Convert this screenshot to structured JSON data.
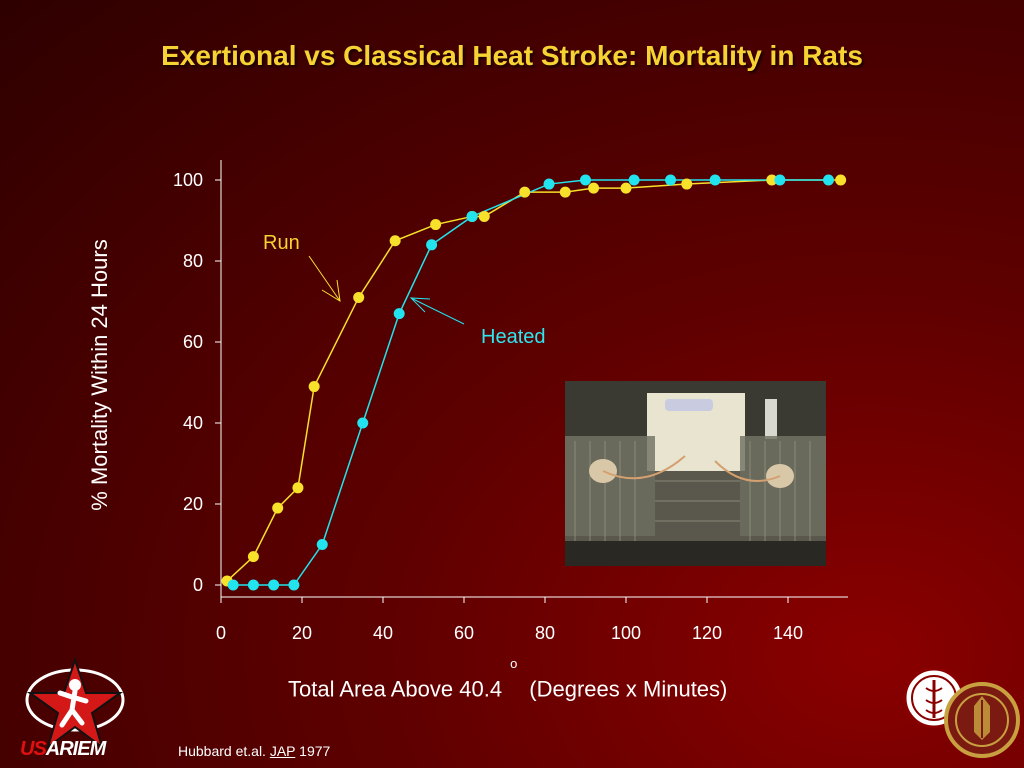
{
  "slide": {
    "title": "Exertional vs Classical Heat Stroke: Mortality in Rats",
    "citation_authors": "Hubbard et.al. ",
    "citation_journal": "JAP",
    "citation_year": " 1977",
    "logo_left_text_us": "US",
    "logo_left_text_rest": "ARIEM"
  },
  "chart_data": {
    "type": "line",
    "title": "Exertional vs Classical Heat Stroke: Mortality in Rats",
    "xlabel_main": "Total Area Above 40.4",
    "xlabel_degree": "o",
    "xlabel_units": "(Degrees x Minutes)",
    "ylabel": "% Mortality Within 24 Hours",
    "xlim": [
      0,
      155
    ],
    "ylim": [
      0,
      100
    ],
    "xticks": [
      0,
      20,
      40,
      60,
      80,
      100,
      120,
      140
    ],
    "yticks": [
      0,
      20,
      40,
      60,
      80,
      100
    ],
    "grid": false,
    "legend": "none",
    "series": [
      {
        "name": "Run",
        "color": "#f7e12a",
        "x": [
          1.5,
          8,
          14,
          19,
          23,
          34,
          43,
          53,
          62,
          65,
          75,
          85,
          92,
          100,
          115,
          136,
          153
        ],
        "y": [
          1,
          7,
          19,
          24,
          49,
          71,
          85,
          89,
          91,
          91,
          97,
          97,
          98,
          98,
          99,
          100,
          100
        ]
      },
      {
        "name": "Heated",
        "color": "#22e4ee",
        "x": [
          3,
          8,
          13,
          18,
          25,
          35,
          44,
          52,
          62,
          81,
          90,
          102,
          111,
          122,
          138,
          150
        ],
        "y": [
          0,
          0,
          0,
          0,
          10,
          40,
          67,
          84,
          91,
          99,
          100,
          100,
          100,
          100,
          100,
          100
        ]
      }
    ],
    "annotations": [
      {
        "text": "Run",
        "color": "#f7d233"
      },
      {
        "text": "Heated",
        "color": "#2de6f0"
      }
    ]
  }
}
